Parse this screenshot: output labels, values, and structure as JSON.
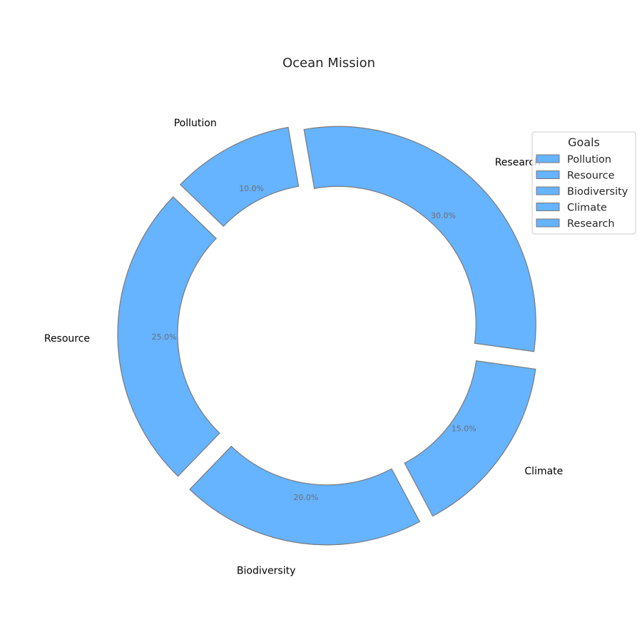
{
  "chart_data": {
    "type": "pie",
    "variant": "donut",
    "title": "Ocean Mission",
    "categories": [
      "Pollution",
      "Resource",
      "Biodiversity",
      "Climate",
      "Research"
    ],
    "values": [
      10,
      25,
      20,
      15,
      30
    ],
    "percent_labels": [
      "10.0%",
      "25.0%",
      "20.0%",
      "15.0%",
      "30.0%"
    ],
    "start_angle_deg": 100,
    "direction": "counterclockwise",
    "exploded": true,
    "colors": {
      "slice_fill": "#66b3ff",
      "slice_edge": "#7a7a7a",
      "label": "#000000",
      "percent_label": "#6e6e6e"
    },
    "legend": {
      "title": "Goals",
      "placement": "upper-right",
      "entries": [
        "Pollution",
        "Resource",
        "Biodiversity",
        "Climate",
        "Research"
      ]
    }
  }
}
